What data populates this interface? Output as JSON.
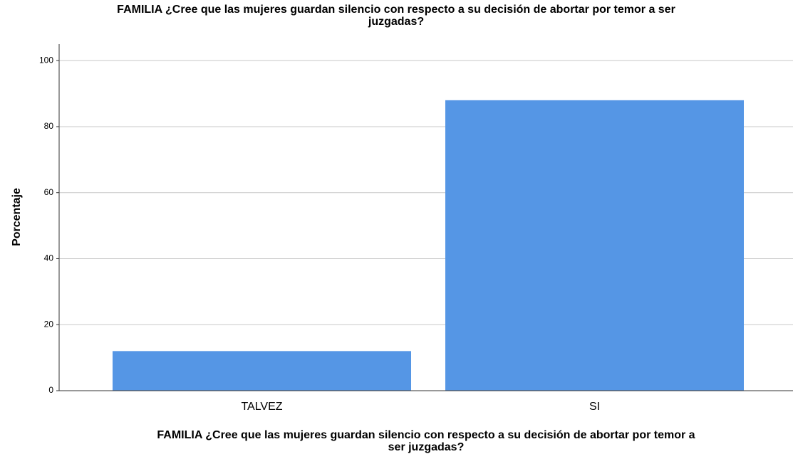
{
  "chart_data": {
    "type": "bar",
    "title": [
      "FAMILIA ¿Cree que las mujeres guardan silencio con respecto a su decisión de abortar por temor a ser",
      "juzgadas?"
    ],
    "x_label": [
      "FAMILIA ¿Cree que las mujeres guardan silencio con respecto a su decisión de abortar por temor a",
      "ser juzgadas?"
    ],
    "y_label": "Porcentaje",
    "categories": [
      "TALVEZ",
      "SI"
    ],
    "values": [
      12,
      88
    ],
    "color": "#5596e5",
    "ylim": [
      0,
      105
    ],
    "yticks": [
      0,
      20,
      40,
      60,
      80,
      100
    ],
    "grid": true
  }
}
